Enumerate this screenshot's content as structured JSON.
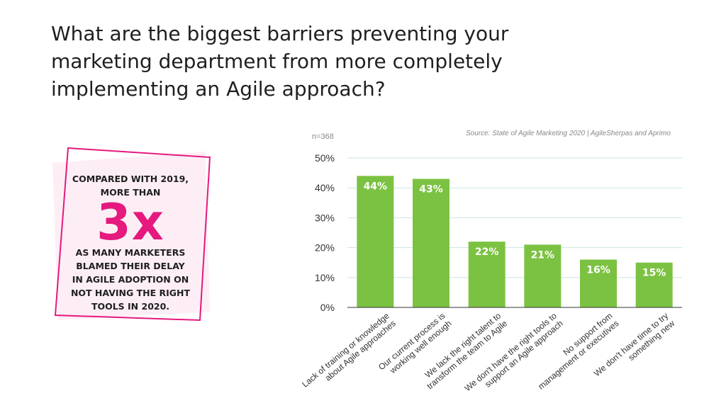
{
  "title": "What are the biggest barriers preventing your marketing department from more completely implementing an Agile approach?",
  "callout": {
    "top": "COMPARED WITH 2019, MORE THAN",
    "big": "3x",
    "bottom": "AS MANY MARKETERS BLAMED THEIR DELAY IN AGILE ADOPTION ON NOT HAVING THE RIGHT TOOLS IN 2020."
  },
  "colors": {
    "bar": "#7cc242",
    "accent": "#e5197e",
    "callout_bg": "#fdeef5",
    "grid": "#c8e6e0"
  },
  "chart_data": {
    "type": "bar",
    "note": "n=368",
    "source": "Source: State of Agile Marketing 2020 | AgileSherpas and Aprimo",
    "ylim": [
      0,
      50
    ],
    "yticks": [
      "0%",
      "10%",
      "20%",
      "30%",
      "40%",
      "50%"
    ],
    "ytick_values": [
      0,
      10,
      20,
      30,
      40,
      50
    ],
    "grid": true,
    "categories": [
      [
        "Lack of training or knowledge",
        "about Agile approaches"
      ],
      [
        "Our current process is",
        "working well enough"
      ],
      [
        "We lack the right talent to",
        "transform the team to Agile"
      ],
      [
        "We don't have the right tools to",
        "support an Agile approach"
      ],
      [
        "No support from",
        "management or executives"
      ],
      [
        "We don't have time to try",
        "something new"
      ]
    ],
    "values": [
      44,
      43,
      22,
      21,
      16,
      15
    ],
    "labels": [
      "44%",
      "43%",
      "22%",
      "21%",
      "16%",
      "15%"
    ]
  }
}
